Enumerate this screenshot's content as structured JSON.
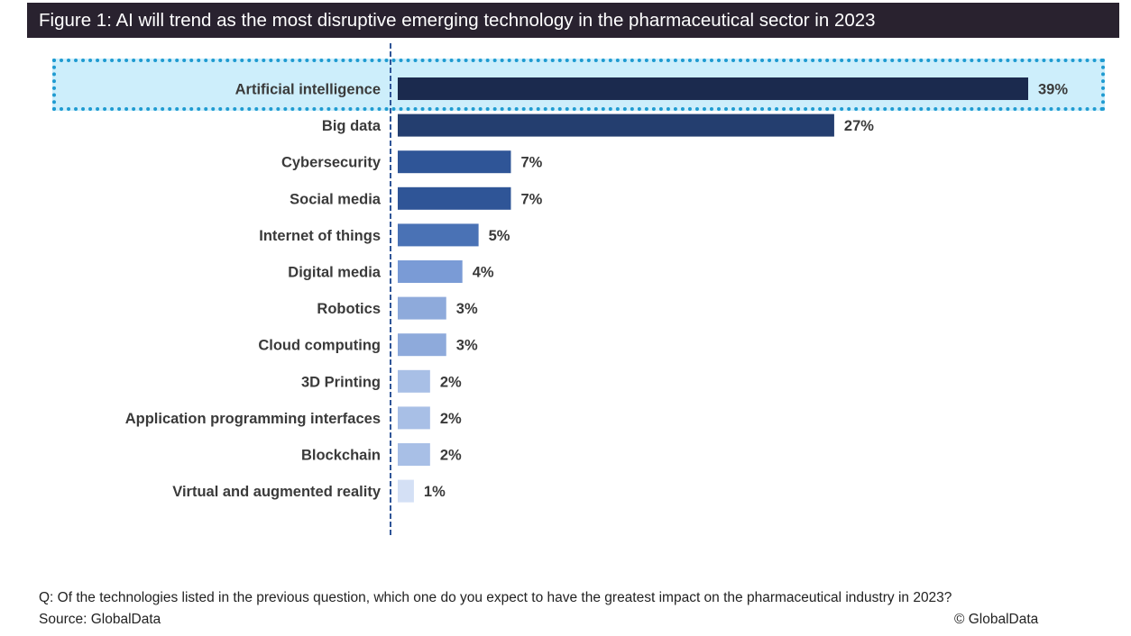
{
  "chart_data": {
    "type": "bar",
    "orientation": "horizontal",
    "title": "Figure 1: AI will trend as the most disruptive emerging technology in the pharmaceutical sector in 2023",
    "xlabel": "",
    "ylabel": "",
    "value_suffix": "%",
    "xlim": [
      0,
      39
    ],
    "grid": false,
    "highlighted_category": "Artificial intelligence",
    "categories": [
      "Artificial intelligence",
      "Big data",
      "Cybersecurity",
      "Social media",
      "Internet of things",
      "Digital media",
      "Robotics",
      "Cloud computing",
      "3D Printing",
      "Application programming interfaces",
      "Blockchain",
      "Virtual and augmented reality"
    ],
    "values": [
      39,
      27,
      7,
      7,
      5,
      4,
      3,
      3,
      2,
      2,
      2,
      1
    ],
    "data_labels": [
      "39%",
      "27%",
      "7%",
      "7%",
      "5%",
      "4%",
      "3%",
      "3%",
      "2%",
      "2%",
      "2%",
      "1%"
    ],
    "bar_colors": [
      "#1b2a4e",
      "#243e6f",
      "#2f5597",
      "#2f5597",
      "#4a72b5",
      "#7a9bd6",
      "#8eaadb",
      "#8eaadb",
      "#a8bfe6",
      "#a8bfe6",
      "#a8bfe6",
      "#d4e0f5"
    ]
  },
  "footer": {
    "question": "Q: Of the technologies listed in the previous question, which one do you expect to have the greatest impact on the pharmaceutical industry in 2023?",
    "source": "Source: GlobalData",
    "copyright": "© GlobalData"
  },
  "colors": {
    "title_background": "#29222f",
    "highlight_fill": "#cdeefb",
    "highlight_border": "#1f9bd1",
    "axis_line": "#2f5597"
  }
}
